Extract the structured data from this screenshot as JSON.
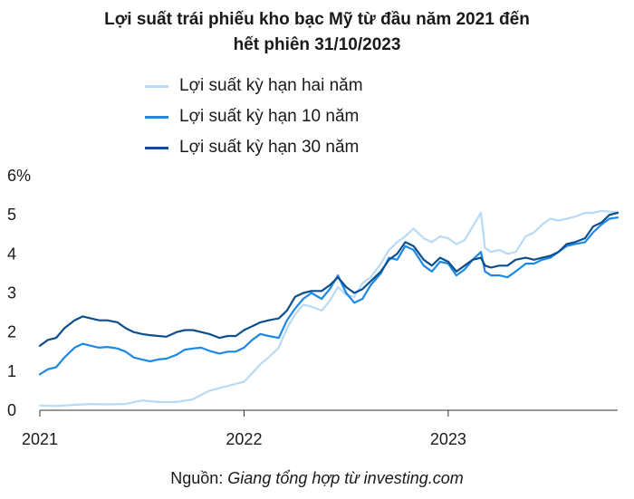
{
  "title_line1": "Lợi suất trái phiếu kho bạc Mỹ từ đầu năm 2021 đến",
  "title_line2": "hết phiên 31/10/2023",
  "source_prefix": "Nguồn: ",
  "source_text": "Giang tổng hợp từ investing.com",
  "chart_data": {
    "type": "line",
    "title": "Lợi suất trái phiếu kho bạc Mỹ từ đầu năm 2021 đến hết phiên 31/10/2023",
    "xlabel": "",
    "ylabel": "%",
    "xlim": [
      2021.0,
      2023.83
    ],
    "ylim": [
      0,
      6
    ],
    "grid": false,
    "legend_position": "top",
    "x_ticks": [
      {
        "value": 2021,
        "label": "2021"
      },
      {
        "value": 2022,
        "label": "2022"
      },
      {
        "value": 2023,
        "label": "2023"
      }
    ],
    "y_ticks": [
      {
        "value": 0,
        "label": "0"
      },
      {
        "value": 1,
        "label": "1"
      },
      {
        "value": 2,
        "label": "2"
      },
      {
        "value": 3,
        "label": "3"
      },
      {
        "value": 4,
        "label": "4"
      },
      {
        "value": 5,
        "label": "5"
      },
      {
        "value": 6,
        "label": "6%"
      }
    ],
    "series": [
      {
        "name": "Lợi suất kỳ hạn hai năm",
        "color": "#b9daf5",
        "points": [
          [
            2021.0,
            0.12
          ],
          [
            2021.08,
            0.11
          ],
          [
            2021.17,
            0.14
          ],
          [
            2021.25,
            0.16
          ],
          [
            2021.33,
            0.15
          ],
          [
            2021.42,
            0.16
          ],
          [
            2021.5,
            0.25
          ],
          [
            2021.58,
            0.21
          ],
          [
            2021.67,
            0.21
          ],
          [
            2021.75,
            0.28
          ],
          [
            2021.83,
            0.5
          ],
          [
            2021.92,
            0.62
          ],
          [
            2022.0,
            0.73
          ],
          [
            2022.04,
            0.95
          ],
          [
            2022.08,
            1.18
          ],
          [
            2022.12,
            1.35
          ],
          [
            2022.17,
            1.6
          ],
          [
            2022.21,
            2.1
          ],
          [
            2022.25,
            2.45
          ],
          [
            2022.29,
            2.7
          ],
          [
            2022.33,
            2.65
          ],
          [
            2022.38,
            2.55
          ],
          [
            2022.42,
            2.8
          ],
          [
            2022.46,
            3.15
          ],
          [
            2022.5,
            2.95
          ],
          [
            2022.54,
            2.9
          ],
          [
            2022.58,
            3.25
          ],
          [
            2022.62,
            3.4
          ],
          [
            2022.67,
            3.75
          ],
          [
            2022.71,
            4.1
          ],
          [
            2022.75,
            4.3
          ],
          [
            2022.79,
            4.45
          ],
          [
            2022.83,
            4.65
          ],
          [
            2022.88,
            4.4
          ],
          [
            2022.92,
            4.3
          ],
          [
            2022.96,
            4.45
          ],
          [
            2023.0,
            4.4
          ],
          [
            2023.04,
            4.25
          ],
          [
            2023.08,
            4.35
          ],
          [
            2023.12,
            4.7
          ],
          [
            2023.16,
            5.05
          ],
          [
            2023.18,
            4.15
          ],
          [
            2023.21,
            4.05
          ],
          [
            2023.25,
            4.1
          ],
          [
            2023.29,
            4.0
          ],
          [
            2023.33,
            4.05
          ],
          [
            2023.38,
            4.45
          ],
          [
            2023.42,
            4.55
          ],
          [
            2023.46,
            4.75
          ],
          [
            2023.5,
            4.9
          ],
          [
            2023.54,
            4.85
          ],
          [
            2023.58,
            4.9
          ],
          [
            2023.62,
            4.95
          ],
          [
            2023.67,
            5.05
          ],
          [
            2023.71,
            5.05
          ],
          [
            2023.75,
            5.1
          ],
          [
            2023.79,
            5.08
          ],
          [
            2023.83,
            5.07
          ]
        ]
      },
      {
        "name": "Lợi suất kỳ hạn 10 năm",
        "color": "#1e88e5",
        "points": [
          [
            2021.0,
            0.92
          ],
          [
            2021.04,
            1.05
          ],
          [
            2021.08,
            1.1
          ],
          [
            2021.12,
            1.35
          ],
          [
            2021.17,
            1.6
          ],
          [
            2021.21,
            1.7
          ],
          [
            2021.25,
            1.65
          ],
          [
            2021.29,
            1.6
          ],
          [
            2021.33,
            1.62
          ],
          [
            2021.38,
            1.58
          ],
          [
            2021.42,
            1.5
          ],
          [
            2021.46,
            1.35
          ],
          [
            2021.5,
            1.3
          ],
          [
            2021.54,
            1.25
          ],
          [
            2021.58,
            1.3
          ],
          [
            2021.62,
            1.32
          ],
          [
            2021.67,
            1.42
          ],
          [
            2021.71,
            1.55
          ],
          [
            2021.75,
            1.58
          ],
          [
            2021.79,
            1.6
          ],
          [
            2021.83,
            1.52
          ],
          [
            2021.88,
            1.45
          ],
          [
            2021.92,
            1.5
          ],
          [
            2021.96,
            1.5
          ],
          [
            2022.0,
            1.6
          ],
          [
            2022.04,
            1.8
          ],
          [
            2022.08,
            1.95
          ],
          [
            2022.12,
            1.9
          ],
          [
            2022.17,
            1.85
          ],
          [
            2022.21,
            2.3
          ],
          [
            2022.25,
            2.6
          ],
          [
            2022.29,
            2.85
          ],
          [
            2022.33,
            3.0
          ],
          [
            2022.38,
            2.85
          ],
          [
            2022.42,
            3.1
          ],
          [
            2022.46,
            3.45
          ],
          [
            2022.5,
            3.0
          ],
          [
            2022.54,
            2.75
          ],
          [
            2022.58,
            2.85
          ],
          [
            2022.62,
            3.2
          ],
          [
            2022.67,
            3.5
          ],
          [
            2022.71,
            3.9
          ],
          [
            2022.75,
            3.85
          ],
          [
            2022.79,
            4.2
          ],
          [
            2022.83,
            4.1
          ],
          [
            2022.88,
            3.7
          ],
          [
            2022.92,
            3.55
          ],
          [
            2022.96,
            3.8
          ],
          [
            2023.0,
            3.75
          ],
          [
            2023.04,
            3.45
          ],
          [
            2023.08,
            3.6
          ],
          [
            2023.12,
            3.85
          ],
          [
            2023.16,
            4.05
          ],
          [
            2023.18,
            3.55
          ],
          [
            2023.21,
            3.45
          ],
          [
            2023.25,
            3.45
          ],
          [
            2023.29,
            3.4
          ],
          [
            2023.33,
            3.55
          ],
          [
            2023.38,
            3.75
          ],
          [
            2023.42,
            3.75
          ],
          [
            2023.46,
            3.85
          ],
          [
            2023.5,
            3.9
          ],
          [
            2023.54,
            4.05
          ],
          [
            2023.58,
            4.2
          ],
          [
            2023.62,
            4.25
          ],
          [
            2023.67,
            4.3
          ],
          [
            2023.71,
            4.55
          ],
          [
            2023.75,
            4.75
          ],
          [
            2023.79,
            4.9
          ],
          [
            2023.83,
            4.93
          ]
        ]
      },
      {
        "name": "Lợi suất kỳ hạn 30 năm",
        "color": "#0d4f8b",
        "points": [
          [
            2021.0,
            1.65
          ],
          [
            2021.04,
            1.8
          ],
          [
            2021.08,
            1.85
          ],
          [
            2021.12,
            2.1
          ],
          [
            2021.17,
            2.3
          ],
          [
            2021.21,
            2.4
          ],
          [
            2021.25,
            2.35
          ],
          [
            2021.29,
            2.3
          ],
          [
            2021.33,
            2.3
          ],
          [
            2021.38,
            2.25
          ],
          [
            2021.42,
            2.1
          ],
          [
            2021.46,
            2.0
          ],
          [
            2021.5,
            1.95
          ],
          [
            2021.54,
            1.92
          ],
          [
            2021.58,
            1.9
          ],
          [
            2021.62,
            1.88
          ],
          [
            2021.67,
            2.0
          ],
          [
            2021.71,
            2.05
          ],
          [
            2021.75,
            2.05
          ],
          [
            2021.79,
            2.0
          ],
          [
            2021.83,
            1.95
          ],
          [
            2021.88,
            1.85
          ],
          [
            2021.92,
            1.9
          ],
          [
            2021.96,
            1.9
          ],
          [
            2022.0,
            2.05
          ],
          [
            2022.04,
            2.15
          ],
          [
            2022.08,
            2.25
          ],
          [
            2022.12,
            2.3
          ],
          [
            2022.17,
            2.35
          ],
          [
            2022.21,
            2.55
          ],
          [
            2022.25,
            2.9
          ],
          [
            2022.29,
            3.0
          ],
          [
            2022.33,
            3.05
          ],
          [
            2022.38,
            3.05
          ],
          [
            2022.42,
            3.2
          ],
          [
            2022.46,
            3.4
          ],
          [
            2022.5,
            3.15
          ],
          [
            2022.54,
            3.0
          ],
          [
            2022.58,
            3.1
          ],
          [
            2022.62,
            3.3
          ],
          [
            2022.67,
            3.55
          ],
          [
            2022.71,
            3.85
          ],
          [
            2022.75,
            4.0
          ],
          [
            2022.79,
            4.3
          ],
          [
            2022.83,
            4.2
          ],
          [
            2022.88,
            3.85
          ],
          [
            2022.92,
            3.7
          ],
          [
            2022.96,
            3.9
          ],
          [
            2023.0,
            3.8
          ],
          [
            2023.04,
            3.55
          ],
          [
            2023.08,
            3.7
          ],
          [
            2023.12,
            3.85
          ],
          [
            2023.16,
            3.9
          ],
          [
            2023.18,
            3.7
          ],
          [
            2023.21,
            3.65
          ],
          [
            2023.25,
            3.7
          ],
          [
            2023.29,
            3.7
          ],
          [
            2023.33,
            3.85
          ],
          [
            2023.38,
            3.9
          ],
          [
            2023.42,
            3.85
          ],
          [
            2023.46,
            3.9
          ],
          [
            2023.5,
            3.95
          ],
          [
            2023.54,
            4.05
          ],
          [
            2023.58,
            4.25
          ],
          [
            2023.62,
            4.3
          ],
          [
            2023.67,
            4.4
          ],
          [
            2023.71,
            4.7
          ],
          [
            2023.75,
            4.8
          ],
          [
            2023.79,
            5.0
          ],
          [
            2023.83,
            5.05
          ]
        ]
      }
    ]
  }
}
